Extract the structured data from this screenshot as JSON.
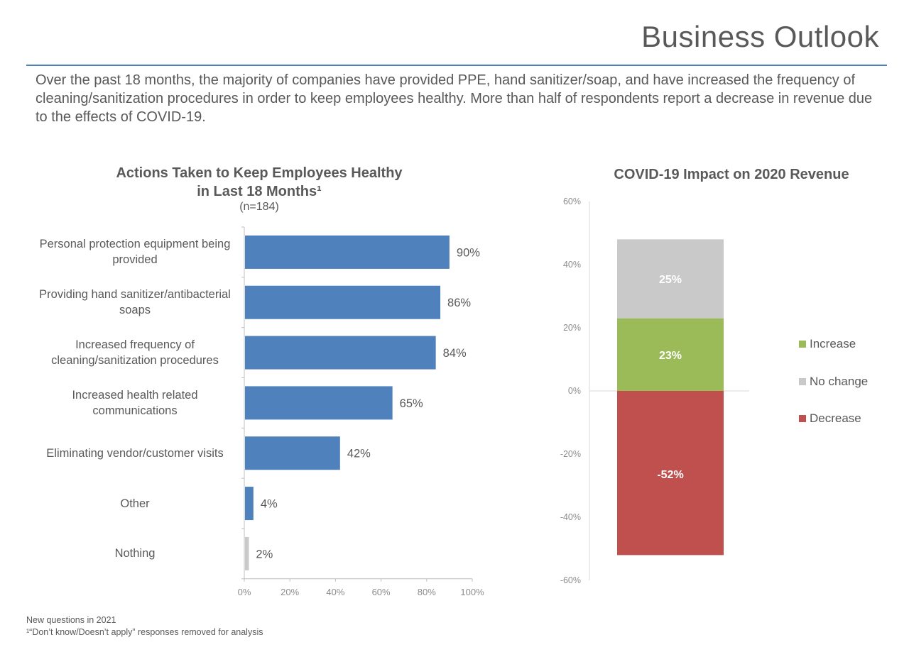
{
  "header": {
    "title": "Business Outlook",
    "intro": "Over the past 18 months, the majority of companies have provided PPE, hand sanitizer/soap, and have increased the frequency of cleaning/sanitization procedures in order to keep employees healthy. More than half of respondents report a decrease in revenue due to the effects of COVID-19."
  },
  "chart_data": [
    {
      "type": "bar",
      "orientation": "horizontal",
      "title": "Actions Taken to Keep Employees Healthy in Last 18 Months¹",
      "title_line1": "Actions Taken to Keep Employees Healthy",
      "title_line2": "in Last 18 Months¹",
      "subtitle": "(n=184)",
      "categories": [
        "Personal protection equipment being provided",
        "Providing hand sanitizer/antibacterial soaps",
        "Increased frequency of cleaning/sanitization procedures",
        "Increased health related communications",
        "Eliminating vendor/customer visits",
        "Other",
        "Nothing"
      ],
      "values": [
        90,
        86,
        84,
        65,
        42,
        4,
        2
      ],
      "data_labels": [
        "90%",
        "86%",
        "84%",
        "65%",
        "42%",
        "4%",
        "2%"
      ],
      "bar_colors": [
        "#4f81bd",
        "#4f81bd",
        "#4f81bd",
        "#4f81bd",
        "#4f81bd",
        "#4f81bd",
        "#c9c9c9"
      ],
      "xlim": [
        0,
        100
      ],
      "xticks": [
        0,
        20,
        40,
        60,
        80,
        100
      ],
      "xtick_labels": [
        "0%",
        "20%",
        "40%",
        "60%",
        "80%",
        "100%"
      ],
      "grid": false
    },
    {
      "type": "bar",
      "stacked": true,
      "title": "COVID-19 Impact on 2020 Revenue",
      "series": [
        {
          "name": "Increase",
          "value": 23,
          "label": "23%",
          "color": "#9bbb59"
        },
        {
          "name": "No change",
          "value": 25,
          "label": "25%",
          "color": "#c9c9c9"
        },
        {
          "name": "Decrease",
          "value": -52,
          "label": "-52%",
          "color": "#c0504d"
        }
      ],
      "ylim": [
        -60,
        60
      ],
      "yticks": [
        60,
        40,
        20,
        0,
        -20,
        -40,
        -60
      ],
      "ytick_labels": [
        "60%",
        "40%",
        "20%",
        "0%",
        "-20%",
        "-40%",
        "-60%"
      ],
      "legend_position": "right",
      "grid": false
    }
  ],
  "footnotes": {
    "line1": "New questions in 2021",
    "line2": "¹“Don’t know/Doesn’t apply” responses removed for analysis"
  }
}
